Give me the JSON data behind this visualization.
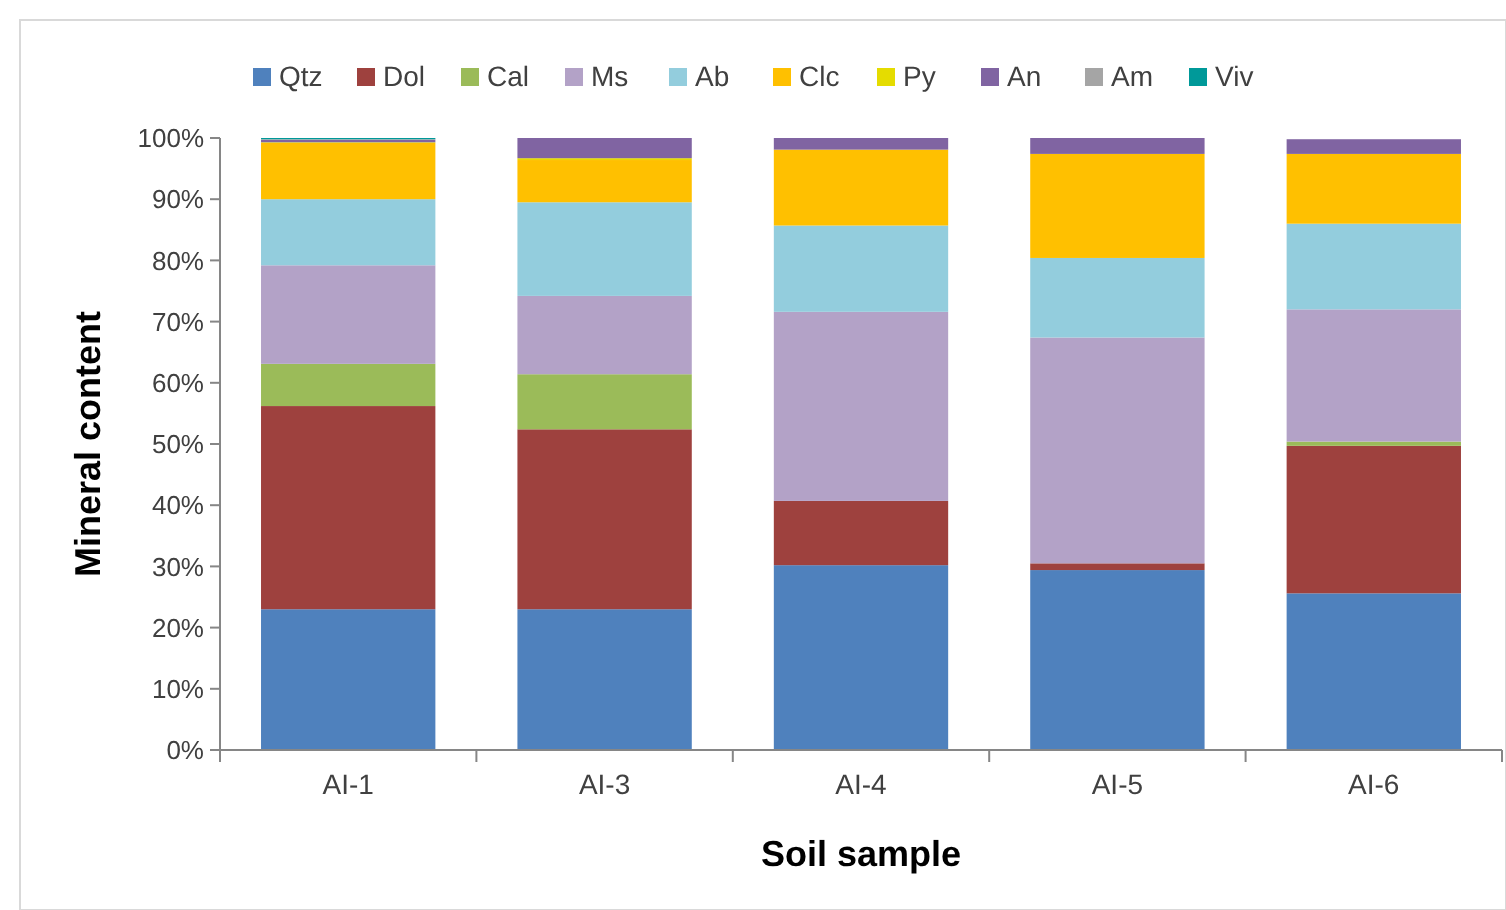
{
  "chart_data": {
    "type": "bar",
    "stacked": true,
    "xlabel": "Soil sample",
    "ylabel": "Mineral content",
    "categories": [
      "AI-1",
      "AI-3",
      "AI-4",
      "AI-5",
      "AI-6"
    ],
    "ylim": [
      0,
      100
    ],
    "yticks": [
      {
        "value": 0,
        "label": "0%"
      },
      {
        "value": 10,
        "label": "10%"
      },
      {
        "value": 20,
        "label": "20%"
      },
      {
        "value": 30,
        "label": "30%"
      },
      {
        "value": 40,
        "label": "40%"
      },
      {
        "value": 50,
        "label": "50%"
      },
      {
        "value": 60,
        "label": "60%"
      },
      {
        "value": 70,
        "label": "70%"
      },
      {
        "value": 80,
        "label": "80%"
      },
      {
        "value": 90,
        "label": "90%"
      },
      {
        "value": 100,
        "label": "100%"
      }
    ],
    "legend": "top",
    "grid": false,
    "series": [
      {
        "name": "Qtz",
        "color": "#4f81bd",
        "values": [
          23.0,
          23.0,
          30.2,
          29.4,
          25.6
        ]
      },
      {
        "name": "Dol",
        "color": "#9e413e",
        "values": [
          33.2,
          29.4,
          10.5,
          1.1,
          24.1
        ]
      },
      {
        "name": "Cal",
        "color": "#9bbb59",
        "values": [
          6.9,
          9.0,
          0,
          0,
          0.7
        ]
      },
      {
        "name": "Ms",
        "color": "#b3a2c7",
        "values": [
          16.1,
          12.8,
          30.9,
          36.9,
          21.6
        ]
      },
      {
        "name": "Ab",
        "color": "#93cddd",
        "values": [
          10.8,
          15.3,
          14.1,
          13.0,
          14.0
        ]
      },
      {
        "name": "Clc",
        "color": "#ffc000",
        "values": [
          9.2,
          6.9,
          12.4,
          17.0,
          11.4
        ]
      },
      {
        "name": "Py",
        "color": "#e5dc00",
        "values": [
          0.1,
          0.3,
          0,
          0,
          0
        ]
      },
      {
        "name": "An",
        "color": "#8064a2",
        "values": [
          0.4,
          3.3,
          1.9,
          2.6,
          2.4
        ]
      },
      {
        "name": "Am",
        "color": "#a5a5a5",
        "values": [
          0.1,
          0,
          0,
          0,
          null
        ]
      },
      {
        "name": "Viv",
        "color": "#009999",
        "values": [
          0.2,
          0,
          0,
          0,
          0
        ]
      }
    ]
  }
}
